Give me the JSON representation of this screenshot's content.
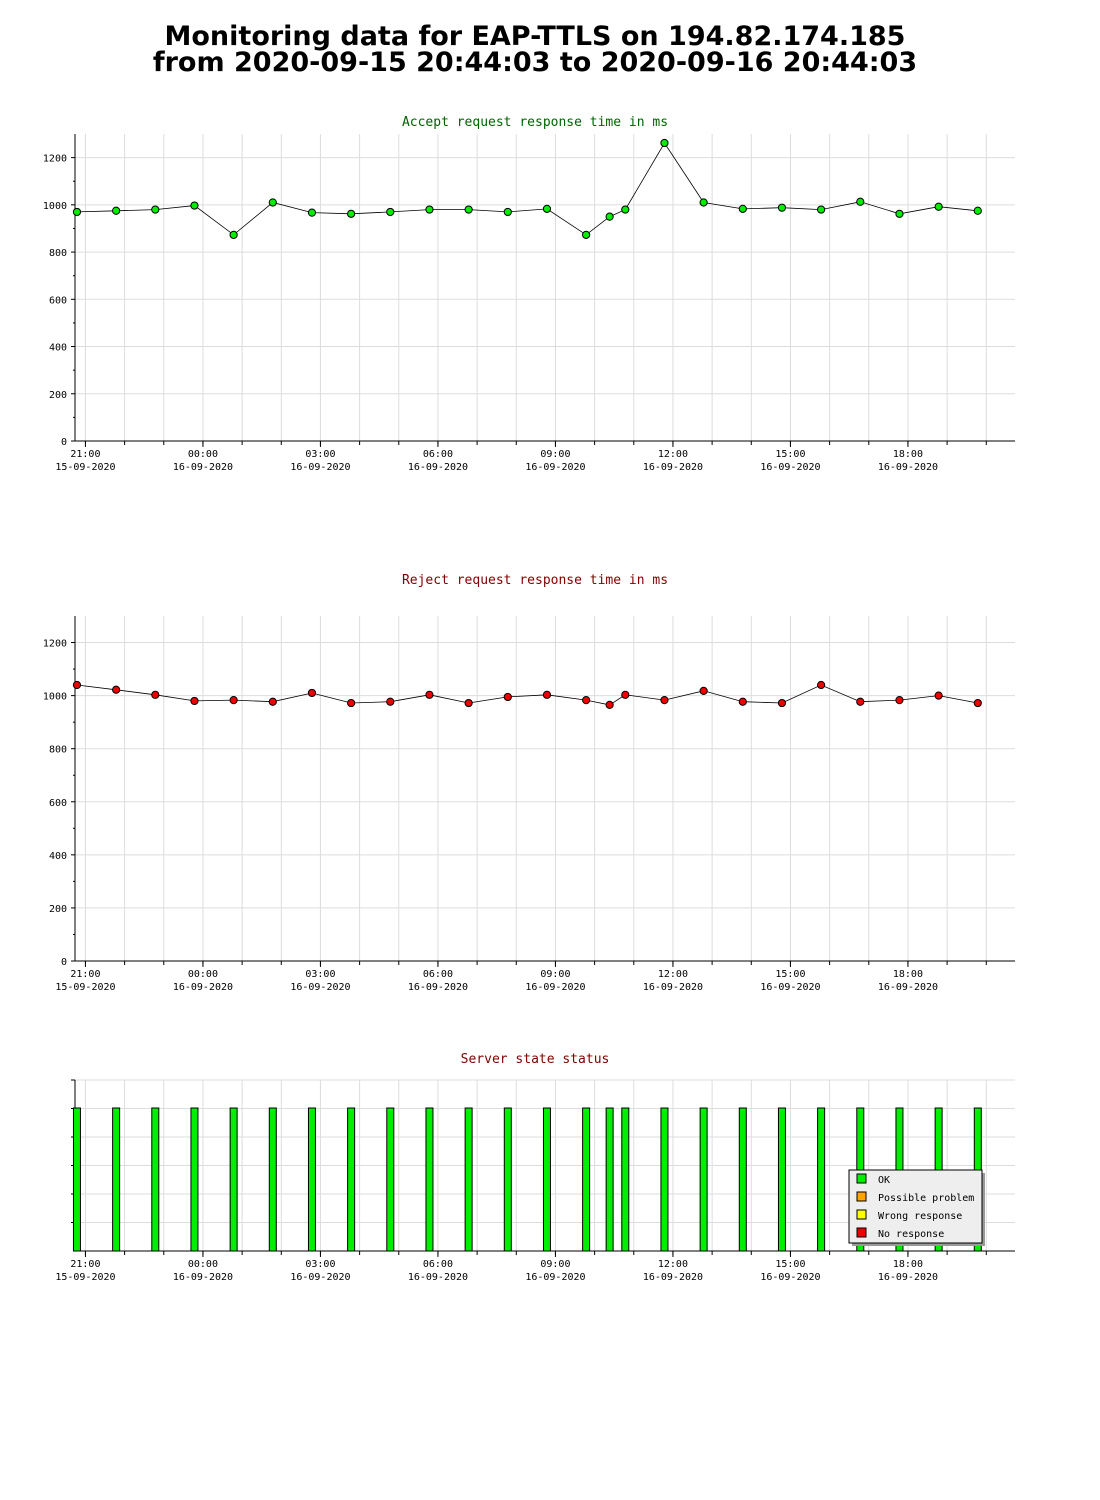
{
  "title": {
    "line1": "Monitoring data for EAP-TTLS on 194.82.174.185",
    "line2": "from 2020-09-15 20:44:03 to 2020-09-16 20:44:03"
  },
  "x_axis": {
    "range": [
      "2020-09-15 20:44",
      "2020-09-16 20:44"
    ],
    "ticks": [
      {
        "time": "2020-09-15 21:00",
        "label_time": "21:00",
        "label_date": "15-09-2020"
      },
      {
        "time": "2020-09-16 00:00",
        "label_time": "00:00",
        "label_date": "16-09-2020"
      },
      {
        "time": "2020-09-16 03:00",
        "label_time": "03:00",
        "label_date": "16-09-2020"
      },
      {
        "time": "2020-09-16 06:00",
        "label_time": "06:00",
        "label_date": "16-09-2020"
      },
      {
        "time": "2020-09-16 09:00",
        "label_time": "09:00",
        "label_date": "16-09-2020"
      },
      {
        "time": "2020-09-16 12:00",
        "label_time": "12:00",
        "label_date": "16-09-2020"
      },
      {
        "time": "2020-09-16 15:00",
        "label_time": "15:00",
        "label_date": "16-09-2020"
      },
      {
        "time": "2020-09-16 18:00",
        "label_time": "18:00",
        "label_date": "16-09-2020"
      }
    ]
  },
  "colors": {
    "ok": "#00ee00",
    "possible_problem": "#ffa500",
    "wrong_response": "#ffff00",
    "no_response": "#ee0000",
    "accept_title": "#006400",
    "reject_title": "#800000",
    "status_title": "#800000",
    "grid": "#dddddd"
  },
  "chart_data": [
    {
      "type": "line",
      "title": "Accept request response time in ms",
      "ylim": [
        0,
        1300
      ],
      "yticks": [
        0,
        200,
        400,
        600,
        800,
        1000,
        1200
      ],
      "grid": true,
      "x": [
        "2020-09-15 20:47",
        "2020-09-15 21:47",
        "2020-09-15 22:47",
        "2020-09-15 23:47",
        "2020-09-16 00:47",
        "2020-09-16 01:47",
        "2020-09-16 02:47",
        "2020-09-16 03:47",
        "2020-09-16 04:47",
        "2020-09-16 05:47",
        "2020-09-16 06:47",
        "2020-09-16 07:47",
        "2020-09-16 08:47",
        "2020-09-16 09:47",
        "2020-09-16 10:23",
        "2020-09-16 10:47",
        "2020-09-16 11:47",
        "2020-09-16 12:47",
        "2020-09-16 13:47",
        "2020-09-16 14:47",
        "2020-09-16 15:47",
        "2020-09-16 16:47",
        "2020-09-16 17:47",
        "2020-09-16 18:47",
        "2020-09-16 19:47"
      ],
      "values": [
        970,
        975,
        980,
        997,
        873,
        1010,
        967,
        962,
        970,
        980,
        980,
        970,
        983,
        873,
        950,
        980,
        1262,
        1010,
        983,
        988,
        980,
        1013,
        962,
        992,
        975
      ],
      "marker_color": "#00ee00"
    },
    {
      "type": "line",
      "title": "Reject request response time in ms",
      "ylim": [
        0,
        1300
      ],
      "yticks": [
        0,
        200,
        400,
        600,
        800,
        1000,
        1200
      ],
      "grid": true,
      "x": [
        "2020-09-15 20:47",
        "2020-09-15 21:47",
        "2020-09-15 22:47",
        "2020-09-15 23:47",
        "2020-09-16 00:47",
        "2020-09-16 01:47",
        "2020-09-16 02:47",
        "2020-09-16 03:47",
        "2020-09-16 04:47",
        "2020-09-16 05:47",
        "2020-09-16 06:47",
        "2020-09-16 07:47",
        "2020-09-16 08:47",
        "2020-09-16 09:47",
        "2020-09-16 10:23",
        "2020-09-16 10:47",
        "2020-09-16 11:47",
        "2020-09-16 12:47",
        "2020-09-16 13:47",
        "2020-09-16 14:47",
        "2020-09-16 15:47",
        "2020-09-16 16:47",
        "2020-09-16 17:47",
        "2020-09-16 18:47",
        "2020-09-16 19:47"
      ],
      "values": [
        1040,
        1022,
        1003,
        980,
        983,
        977,
        1010,
        972,
        977,
        1003,
        972,
        995,
        1003,
        983,
        965,
        1003,
        983,
        1018,
        977,
        972,
        1040,
        977,
        983,
        1000,
        972
      ],
      "marker_color": "#ee0000"
    },
    {
      "type": "bar",
      "title": "Server state status",
      "x": [
        "2020-09-15 20:47",
        "2020-09-15 21:47",
        "2020-09-15 22:47",
        "2020-09-15 23:47",
        "2020-09-16 00:47",
        "2020-09-16 01:47",
        "2020-09-16 02:47",
        "2020-09-16 03:47",
        "2020-09-16 04:47",
        "2020-09-16 05:47",
        "2020-09-16 06:47",
        "2020-09-16 07:47",
        "2020-09-16 08:47",
        "2020-09-16 09:47",
        "2020-09-16 10:23",
        "2020-09-16 10:47",
        "2020-09-16 11:47",
        "2020-09-16 12:47",
        "2020-09-16 13:47",
        "2020-09-16 14:47",
        "2020-09-16 15:47",
        "2020-09-16 16:47",
        "2020-09-16 17:47",
        "2020-09-16 18:47",
        "2020-09-16 19:47"
      ],
      "status": [
        "ok",
        "ok",
        "ok",
        "ok",
        "ok",
        "ok",
        "ok",
        "ok",
        "ok",
        "ok",
        "ok",
        "ok",
        "ok",
        "ok",
        "ok",
        "ok",
        "ok",
        "ok",
        "ok",
        "ok",
        "ok",
        "ok",
        "ok",
        "ok",
        "ok"
      ],
      "legend": [
        {
          "key": "ok",
          "label": "OK"
        },
        {
          "key": "possible_problem",
          "label": "Possible problem"
        },
        {
          "key": "wrong_response",
          "label": "Wrong response"
        },
        {
          "key": "no_response",
          "label": "No response"
        }
      ],
      "legend_position": "bottom-right"
    }
  ]
}
